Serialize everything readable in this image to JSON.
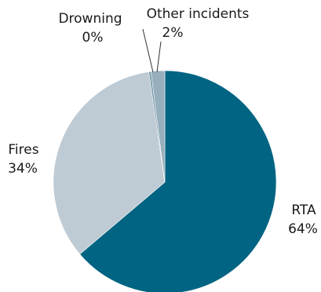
{
  "chart_data": {
    "type": "pie",
    "title": "",
    "slices": [
      {
        "label": "RTA",
        "value": 64,
        "value_label": "64%",
        "color": "#006482"
      },
      {
        "label": "Fires",
        "value": 34,
        "value_label": "34%",
        "color": "#bfcbd4"
      },
      {
        "label": "Drowning",
        "value": 0.3,
        "value_label": "0%",
        "color": "#6e93a3"
      },
      {
        "label": "Other incidents",
        "value": 2,
        "value_label": "2%",
        "color": "#97afbd"
      }
    ],
    "legend": "none",
    "leader_line_color": "#333333"
  }
}
